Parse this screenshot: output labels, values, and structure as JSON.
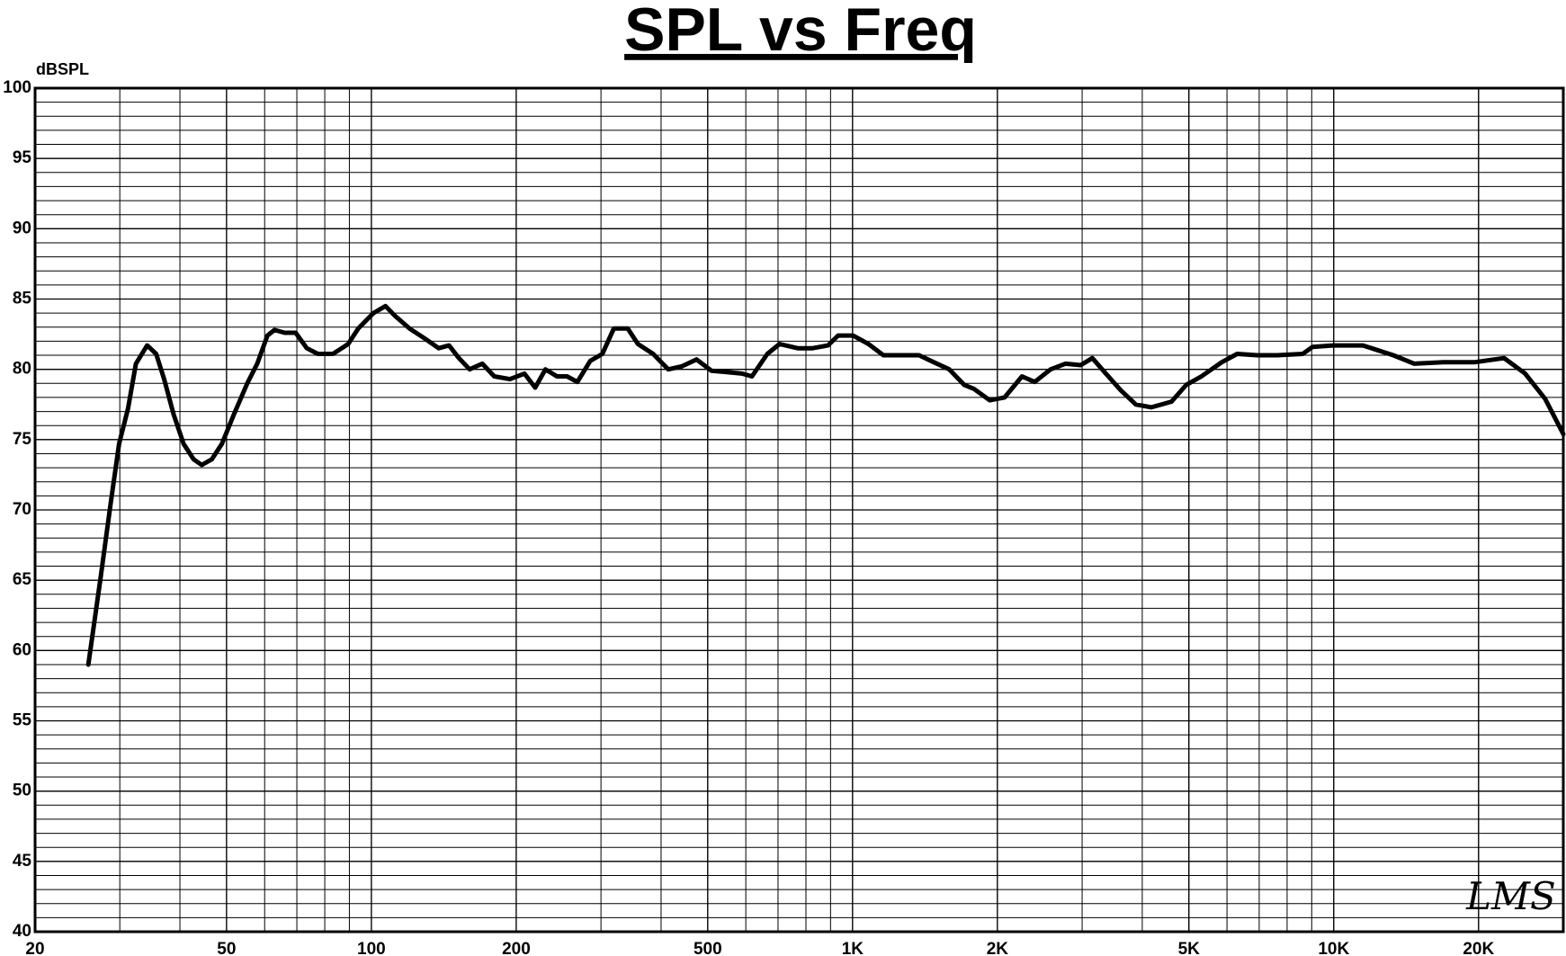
{
  "chart_data": {
    "type": "line",
    "title": "SPL vs Freq",
    "y_label": "dBSPL",
    "annotation": "LMS",
    "x_scale": "log",
    "grid": true,
    "minor_grid": true,
    "xlim": [
      20,
      30000
    ],
    "ylim": [
      40,
      100
    ],
    "xticks": [
      20,
      50,
      100,
      200,
      500,
      {
        "value": 1000,
        "label": "1K"
      },
      {
        "value": 2000,
        "label": "2K"
      },
      {
        "value": 5000,
        "label": "5K"
      },
      {
        "value": 10000,
        "label": "10K"
      },
      {
        "value": 20000,
        "label": "20K"
      }
    ],
    "yticks": [
      40,
      45,
      50,
      55,
      60,
      65,
      70,
      75,
      80,
      85,
      90,
      95,
      100
    ],
    "x": [
      25.8,
      27.4,
      28.7,
      29.9,
      31.2,
      32.4,
      34.2,
      35.7,
      37.1,
      38.8,
      40.7,
      42.7,
      44.4,
      46.6,
      48.9,
      51.8,
      55.2,
      57.9,
      60.8,
      62.9,
      66,
      69.6,
      73.4,
      77.4,
      83.2,
      89.5,
      93.9,
      101,
      107,
      112,
      120,
      129,
      138,
      145,
      152,
      160,
      170,
      180,
      194,
      208,
      219,
      230,
      243,
      255,
      268,
      285,
      302,
      319,
      341,
      358,
      385,
      414,
      441,
      474,
      509,
      548,
      589,
      618,
      665,
      705,
      769,
      826,
      889,
      933,
      1002,
      1079,
      1159,
      1247,
      1374,
      1476,
      1588,
      1706,
      1790,
      1928,
      2070,
      2250,
      2390,
      2580,
      2770,
      2980,
      3150,
      3360,
      3610,
      3880,
      4180,
      4600,
      4940,
      5310,
      5850,
      6300,
      6935,
      7640,
      8620,
      9040,
      9955,
      11500,
      13300,
      14700,
      16900,
      19600,
      22600,
      25000,
      27500,
      30000
    ],
    "series": [
      {
        "name": "SPL",
        "color": "#000000",
        "values": [
          59.0,
          65.3,
          70.4,
          74.7,
          77.2,
          80.4,
          81.7,
          81.1,
          79.3,
          76.8,
          74.7,
          73.6,
          73.2,
          73.6,
          74.7,
          76.8,
          79.0,
          80.4,
          82.4,
          82.8,
          82.6,
          82.6,
          81.5,
          81.1,
          81.1,
          81.8,
          82.9,
          84.0,
          84.5,
          83.8,
          82.9,
          82.2,
          81.5,
          81.7,
          80.8,
          80.0,
          80.4,
          79.5,
          79.3,
          79.7,
          78.7,
          80.0,
          79.5,
          79.5,
          79.1,
          80.6,
          81.1,
          82.9,
          82.9,
          81.8,
          81.1,
          80.0,
          80.2,
          80.7,
          79.9,
          79.8,
          79.7,
          79.5,
          81.1,
          81.8,
          81.5,
          81.5,
          81.7,
          82.4,
          82.4,
          81.8,
          81.0,
          81.0,
          81.0,
          80.5,
          80.0,
          78.9,
          78.6,
          77.8,
          78.0,
          79.5,
          79.1,
          80.0,
          80.4,
          80.3,
          80.8,
          79.7,
          78.5,
          77.5,
          77.3,
          77.7,
          78.9,
          79.5,
          80.5,
          81.1,
          81.0,
          81.0,
          81.1,
          81.6,
          81.7,
          81.7,
          81.0,
          80.4,
          80.5,
          80.5,
          80.8,
          79.7,
          77.9,
          75.4
        ]
      }
    ]
  }
}
